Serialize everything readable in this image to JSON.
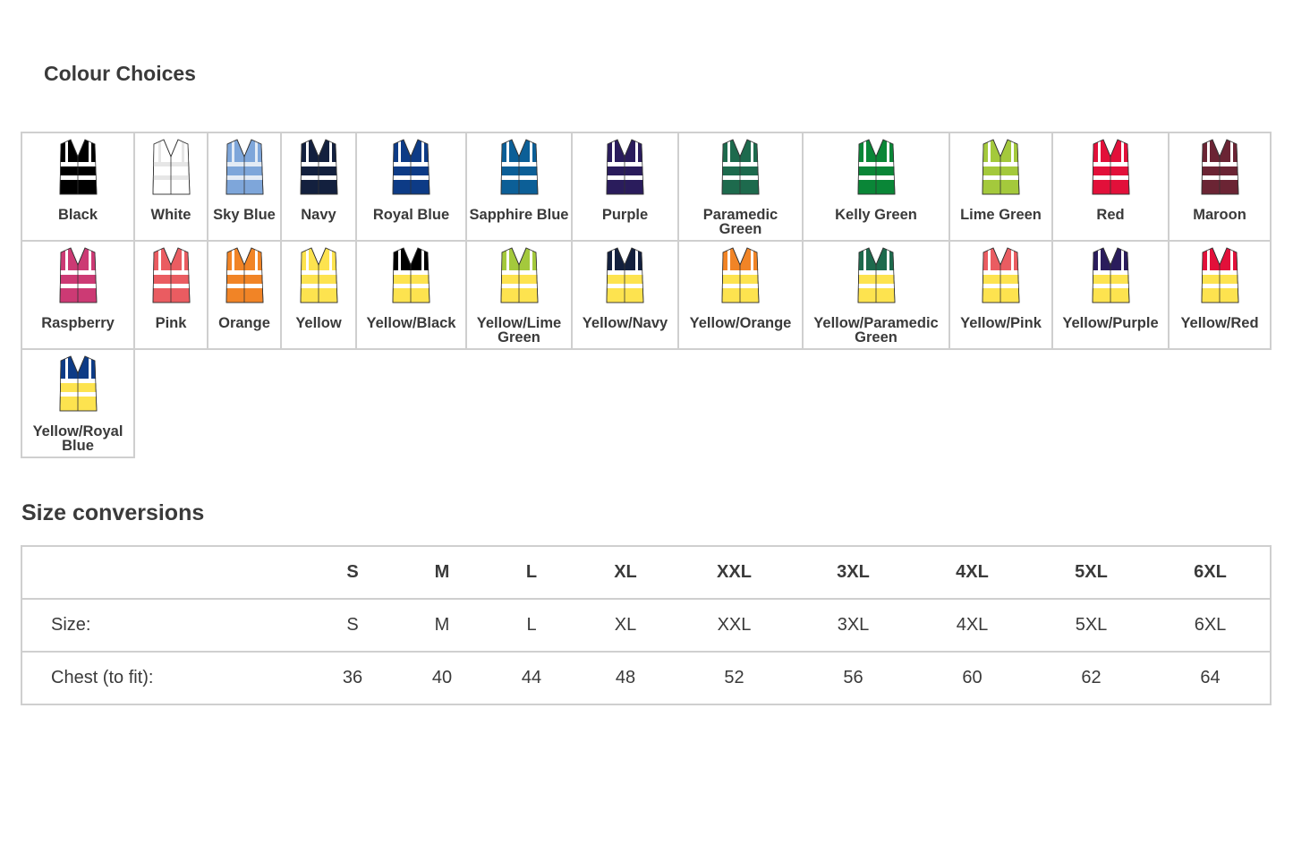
{
  "colour_section": {
    "title": "Colour Choices",
    "rows": [
      [
        {
          "label": "Black",
          "body": "#000000",
          "yoke": "#000000",
          "band": "#ffffff"
        },
        {
          "label": "White",
          "body": "#ffffff",
          "yoke": "#ffffff",
          "band": "#e6e6e6"
        },
        {
          "label": "Sky Blue",
          "body": "#7ea6da",
          "yoke": "#7ea6da",
          "band": "#e3ebf5"
        },
        {
          "label": "Navy",
          "body": "#13203e",
          "yoke": "#13203e",
          "band": "#ffffff"
        },
        {
          "label": "Royal Blue",
          "body": "#0d3b86",
          "yoke": "#0d3b86",
          "band": "#ffffff"
        },
        {
          "label": "Sapphire Blue",
          "body": "#0c5f97",
          "yoke": "#0c5f97",
          "band": "#ffffff"
        },
        {
          "label": "Purple",
          "body": "#2a1c5c",
          "yoke": "#2a1c5c",
          "band": "#ffffff"
        },
        {
          "label": "Paramedic Green",
          "body": "#1d6a4d",
          "yoke": "#1d6a4d",
          "band": "#ffffff"
        },
        {
          "label": "Kelly Green",
          "body": "#0a8637",
          "yoke": "#0a8637",
          "band": "#ffffff"
        },
        {
          "label": "Lime Green",
          "body": "#a4c93c",
          "yoke": "#a4c93c",
          "band": "#ffffff"
        },
        {
          "label": "Red",
          "body": "#e2103a",
          "yoke": "#e2103a",
          "band": "#ffffff"
        },
        {
          "label": "Maroon",
          "body": "#6b2434",
          "yoke": "#6b2434",
          "band": "#ffffff"
        }
      ],
      [
        {
          "label": "Raspberry",
          "body": "#cc3a74",
          "yoke": "#cc3a74",
          "band": "#ffffff"
        },
        {
          "label": "Pink",
          "body": "#ea5c61",
          "yoke": "#ea5c61",
          "band": "#ffffff"
        },
        {
          "label": "Orange",
          "body": "#f18426",
          "yoke": "#f18426",
          "band": "#ffffff"
        },
        {
          "label": "Yellow",
          "body": "#fde34f",
          "yoke": "#fde34f",
          "band": "#ffffff"
        },
        {
          "label": "Yellow/Black",
          "body": "#fde34f",
          "yoke": "#000000",
          "band": "#ffffff"
        },
        {
          "label": "Yellow/Lime Green",
          "body": "#fde34f",
          "yoke": "#a4c93c",
          "band": "#ffffff"
        },
        {
          "label": "Yellow/Navy",
          "body": "#fde34f",
          "yoke": "#13203e",
          "band": "#ffffff"
        },
        {
          "label": "Yellow/Orange",
          "body": "#fde34f",
          "yoke": "#f18426",
          "band": "#ffffff"
        },
        {
          "label": "Yellow/Paramedic Green",
          "body": "#fde34f",
          "yoke": "#1d6a4d",
          "band": "#ffffff"
        },
        {
          "label": "Yellow/Pink",
          "body": "#fde34f",
          "yoke": "#ea5c61",
          "band": "#ffffff"
        },
        {
          "label": "Yellow/Purple",
          "body": "#fde34f",
          "yoke": "#2a1c5c",
          "band": "#ffffff"
        },
        {
          "label": "Yellow/Red",
          "body": "#fde34f",
          "yoke": "#e2103a",
          "band": "#ffffff"
        }
      ],
      [
        {
          "label": "Yellow/Royal Blue",
          "body": "#fde34f",
          "yoke": "#0d3b86",
          "band": "#ffffff"
        }
      ]
    ]
  },
  "size_section": {
    "title": "Size conversions",
    "headers": [
      "",
      "S",
      "M",
      "L",
      "XL",
      "XXL",
      "3XL",
      "4XL",
      "5XL",
      "6XL"
    ],
    "rows": [
      [
        "Size:",
        "S",
        "M",
        "L",
        "XL",
        "XXL",
        "3XL",
        "4XL",
        "5XL",
        "6XL"
      ],
      [
        "Chest (to fit):",
        "36",
        "40",
        "44",
        "48",
        "52",
        "56",
        "60",
        "62",
        "64"
      ]
    ]
  }
}
